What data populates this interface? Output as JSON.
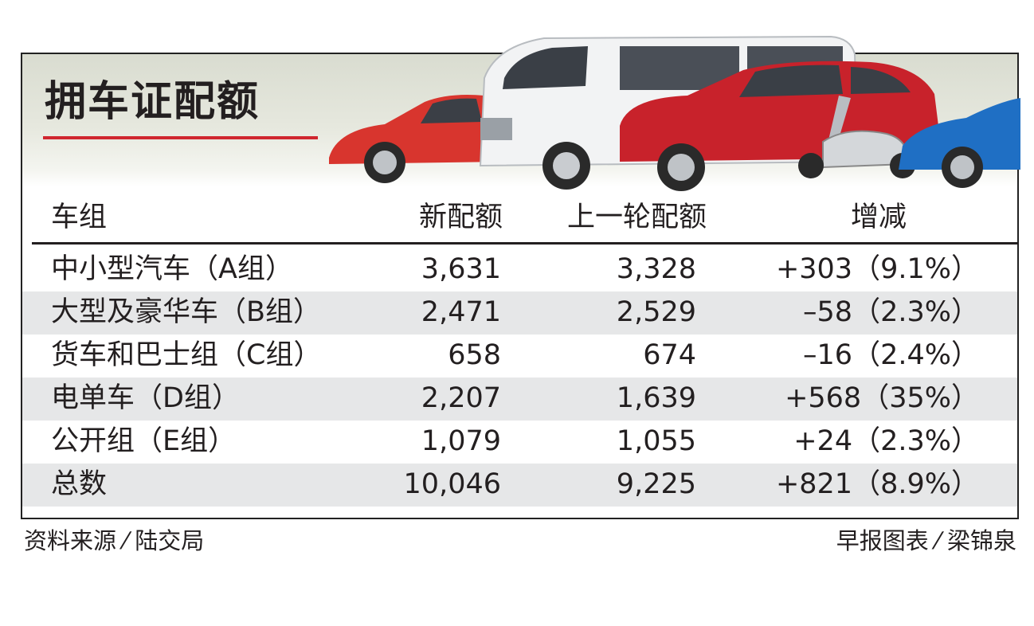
{
  "title": "拥车证配额",
  "colors": {
    "accent_red": "#d0262f",
    "row_shade": "#e6e7e8",
    "text": "#231f20"
  },
  "chart_data": {
    "type": "table",
    "columns": [
      "车组",
      "新配额",
      "上一轮配额",
      "增减"
    ],
    "rows": [
      {
        "group": "中小型汽车（A组）",
        "new": "3,631",
        "prev": "3,328",
        "change": "+303（9.1%）"
      },
      {
        "group": "大型及豪华车（B组）",
        "new": "2,471",
        "prev": "2,529",
        "change": "–58（2.3%）"
      },
      {
        "group": "货车和巴士组（C组）",
        "new": "658",
        "prev": "674",
        "change": "–16（2.4%）"
      },
      {
        "group": "电单车（D组）",
        "new": "2,207",
        "prev": "1,639",
        "change": "+568（35%）"
      },
      {
        "group": "公开组（E组）",
        "new": "1,079",
        "prev": "1,055",
        "change": "+24（2.3%）"
      },
      {
        "group": "总数",
        "new": "10,046",
        "prev": "9,225",
        "change": "+821（8.9%）"
      }
    ]
  },
  "footer": {
    "source": "资料来源 ⁄ 陆交局",
    "credit": "早报图表 ⁄ 梁锦泉"
  },
  "illustration": {
    "description_icons": [
      "red-hatchback-icon",
      "white-van-icon",
      "red-suv-icon",
      "scooter-icon",
      "blue-sports-car-icon"
    ]
  }
}
